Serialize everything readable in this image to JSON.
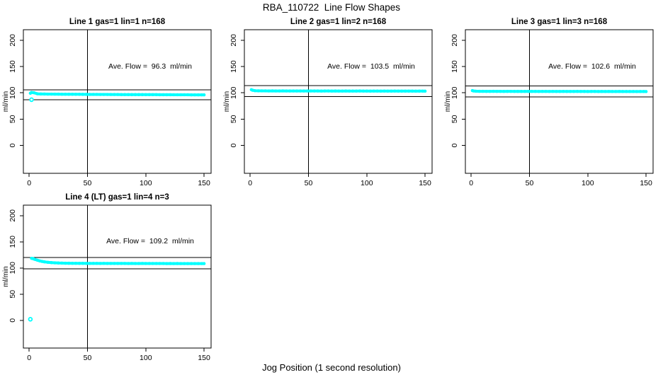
{
  "page": {
    "title": "RBA_110722  Line Flow Shapes",
    "xlabel": "Jog Position (1 second resolution)",
    "background": "#ffffff"
  },
  "colors": {
    "points": "#00ffff",
    "axis": "#000000",
    "text": "#000000"
  },
  "chart_data": [
    {
      "type": "scatter",
      "title": "Line 1 gas=1 lin=1 n=168",
      "annotation": "Ave. Flow =  96.3  ml/min",
      "ave_flow_ml_min": 96.3,
      "n": 168,
      "ylabel": "ml/min",
      "xticks": [
        0,
        50,
        100,
        150
      ],
      "yticks": [
        0,
        50,
        100,
        150,
        200
      ],
      "xlim": [
        -5,
        156
      ],
      "ylim": [
        -53,
        220
      ],
      "vline": 50,
      "hlines": [
        105.9,
        86.7
      ],
      "x": [
        1,
        2,
        4,
        7,
        10,
        13,
        16,
        19,
        22,
        25,
        28,
        31,
        34,
        37,
        40,
        43,
        46,
        49,
        52,
        55,
        58,
        61,
        64,
        67,
        70,
        73,
        76,
        79,
        82,
        85,
        88,
        91,
        94,
        97,
        100,
        103,
        106,
        109,
        112,
        115,
        118,
        121,
        124,
        127,
        130,
        133,
        136,
        139,
        142,
        145,
        148,
        150
      ],
      "y": [
        99.2,
        100.7,
        100.2,
        98.2,
        97.8,
        97.7,
        97.6,
        97.6,
        97.5,
        97.5,
        97.4,
        97.4,
        97.3,
        97.3,
        97.2,
        97.2,
        97.1,
        97.1,
        97.0,
        97.0,
        97.0,
        96.9,
        96.9,
        96.9,
        96.8,
        96.8,
        96.8,
        96.7,
        96.7,
        96.7,
        96.6,
        96.6,
        96.6,
        96.6,
        96.5,
        96.5,
        96.5,
        96.5,
        96.4,
        96.4,
        96.4,
        96.4,
        96.3,
        96.3,
        96.3,
        96.3,
        96.3,
        96.2,
        96.2,
        96.2,
        96.2,
        96.2
      ],
      "outliers": [
        [
          2,
          87
        ]
      ]
    },
    {
      "type": "scatter",
      "title": "Line 2 gas=1 lin=2 n=168",
      "annotation": "Ave. Flow =  103.5  ml/min",
      "ave_flow_ml_min": 103.5,
      "n": 168,
      "ylabel": "ml/min",
      "xticks": [
        0,
        50,
        100,
        150
      ],
      "yticks": [
        0,
        50,
        100,
        150,
        200
      ],
      "xlim": [
        -5,
        156
      ],
      "ylim": [
        -53,
        220
      ],
      "vline": 50,
      "hlines": [
        113.9,
        93.2
      ],
      "x": [
        1,
        2,
        4,
        7,
        10,
        13,
        16,
        19,
        22,
        25,
        28,
        31,
        34,
        37,
        40,
        43,
        46,
        49,
        52,
        55,
        58,
        61,
        64,
        67,
        70,
        73,
        76,
        79,
        82,
        85,
        88,
        91,
        94,
        97,
        100,
        103,
        106,
        109,
        112,
        115,
        118,
        121,
        124,
        127,
        130,
        133,
        136,
        139,
        142,
        145,
        148,
        150
      ],
      "y": [
        106.0,
        105.0,
        104.1,
        103.8,
        103.7,
        103.7,
        103.6,
        103.7,
        103.6,
        103.6,
        103.7,
        103.6,
        103.5,
        103.6,
        103.5,
        103.6,
        103.5,
        103.5,
        103.6,
        103.5,
        103.5,
        103.4,
        103.5,
        103.5,
        103.4,
        103.5,
        103.4,
        103.4,
        103.5,
        103.4,
        103.4,
        103.4,
        103.5,
        103.4,
        103.4,
        103.3,
        103.4,
        103.4,
        103.3,
        103.4,
        103.3,
        103.3,
        103.4,
        103.3,
        103.3,
        103.3,
        103.3,
        103.3,
        103.2,
        103.3,
        103.3,
        103.2
      ],
      "outliers": []
    },
    {
      "type": "scatter",
      "title": "Line 3 gas=1 lin=3 n=168",
      "annotation": "Ave. Flow =  102.6  ml/min",
      "ave_flow_ml_min": 102.6,
      "n": 168,
      "ylabel": "ml/min",
      "xticks": [
        0,
        50,
        100,
        150
      ],
      "yticks": [
        0,
        50,
        100,
        150,
        200
      ],
      "xlim": [
        -5,
        156
      ],
      "ylim": [
        -53,
        220
      ],
      "vline": 50,
      "hlines": [
        112.9,
        92.3
      ],
      "x": [
        1,
        2,
        4,
        7,
        10,
        13,
        16,
        19,
        22,
        25,
        28,
        31,
        34,
        37,
        40,
        43,
        46,
        49,
        52,
        55,
        58,
        61,
        64,
        67,
        70,
        73,
        76,
        79,
        82,
        85,
        88,
        91,
        94,
        97,
        100,
        103,
        106,
        109,
        112,
        115,
        118,
        121,
        124,
        127,
        130,
        133,
        136,
        139,
        142,
        145,
        148,
        150
      ],
      "y": [
        104.3,
        103.6,
        103.1,
        102.9,
        102.9,
        102.8,
        102.8,
        102.9,
        102.8,
        102.8,
        102.7,
        102.8,
        102.8,
        102.7,
        102.8,
        102.7,
        102.7,
        102.8,
        102.7,
        102.7,
        102.6,
        102.7,
        102.7,
        102.6,
        102.7,
        102.6,
        102.6,
        102.7,
        102.6,
        102.6,
        102.6,
        102.7,
        102.6,
        102.6,
        102.5,
        102.6,
        102.6,
        102.5,
        102.6,
        102.5,
        102.6,
        102.5,
        102.5,
        102.6,
        102.5,
        102.5,
        102.5,
        102.5,
        102.4,
        102.5,
        102.5,
        102.4
      ],
      "outliers": []
    },
    {
      "type": "scatter",
      "title": "Line 4 (LT) gas=1 lin=4 n=3",
      "annotation": "Ave. Flow =  109.2  ml/min",
      "ave_flow_ml_min": 109.2,
      "n": 3,
      "ylabel": "ml/min",
      "xticks": [
        0,
        50,
        100,
        150
      ],
      "yticks": [
        0,
        50,
        100,
        150,
        200
      ],
      "xlim": [
        -5,
        156
      ],
      "ylim": [
        -53,
        220
      ],
      "vline": 50,
      "hlines": [
        120.1,
        98.3
      ],
      "x": [
        2,
        3,
        4,
        5,
        7,
        9,
        11,
        13,
        16,
        19,
        22,
        25,
        28,
        31,
        34,
        37,
        40,
        43,
        46,
        49,
        52,
        55,
        58,
        61,
        64,
        67,
        70,
        73,
        76,
        79,
        82,
        85,
        88,
        91,
        94,
        97,
        100,
        103,
        106,
        109,
        112,
        115,
        118,
        121,
        124,
        127,
        130,
        133,
        136,
        139,
        142,
        145,
        148,
        150
      ],
      "y": [
        118.4,
        118.0,
        117.2,
        116.3,
        114.8,
        113.5,
        112.5,
        111.7,
        110.8,
        110.2,
        109.8,
        109.5,
        109.3,
        109.1,
        109.0,
        108.9,
        108.9,
        108.8,
        108.8,
        108.7,
        108.7,
        108.7,
        108.7,
        108.6,
        108.7,
        108.6,
        108.6,
        108.6,
        108.6,
        108.6,
        108.6,
        108.5,
        108.6,
        108.5,
        108.5,
        108.6,
        108.5,
        108.5,
        108.5,
        108.5,
        108.5,
        108.5,
        108.4,
        108.5,
        108.4,
        108.5,
        108.4,
        108.4,
        108.4,
        108.4,
        108.4,
        108.4,
        108.4,
        108.4
      ],
      "outliers": [
        [
          1,
          2
        ]
      ]
    }
  ]
}
